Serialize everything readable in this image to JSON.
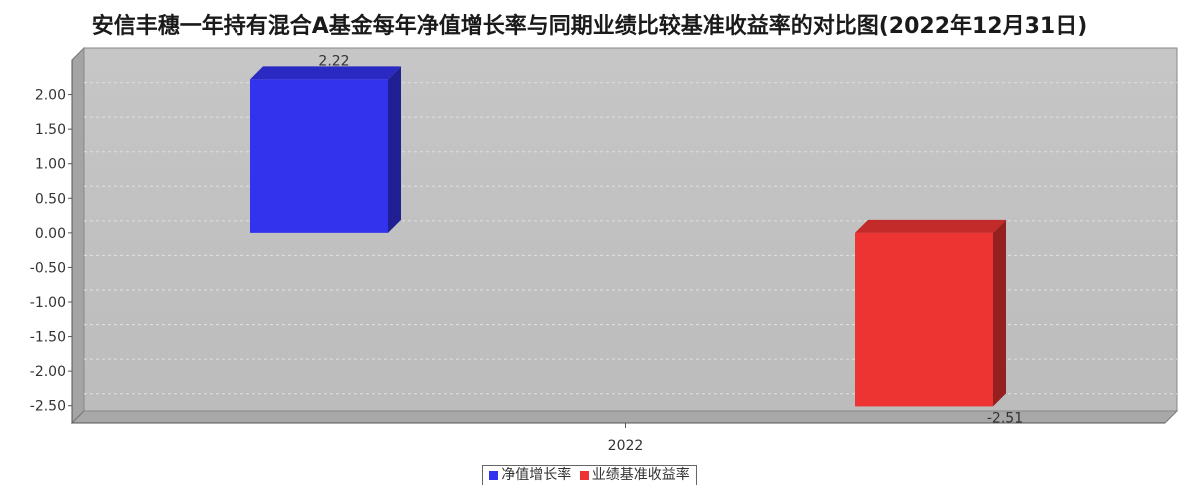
{
  "chart_data": {
    "type": "bar",
    "title": "安信丰穗一年持有混合A基金每年净值增长率与同期业绩比较基准收益率的对比图(2022年12月31日)",
    "categories": [
      "2022"
    ],
    "series": [
      {
        "name": "净值增长率",
        "values": [
          2.22
        ],
        "color": "#3333EE"
      },
      {
        "name": "业绩基准收益率",
        "values": [
          -2.51
        ],
        "color": "#EE3333"
      }
    ],
    "ylim": [
      -2.75,
      2.5
    ],
    "yticks": [
      "2.00",
      "1.50",
      "1.00",
      "0.50",
      "0.00",
      "-0.50",
      "-1.00",
      "-1.50",
      "-2.00",
      "-2.50"
    ],
    "data_labels": [
      "2.22",
      "-2.51"
    ],
    "grid": true,
    "legend": "bottom"
  }
}
